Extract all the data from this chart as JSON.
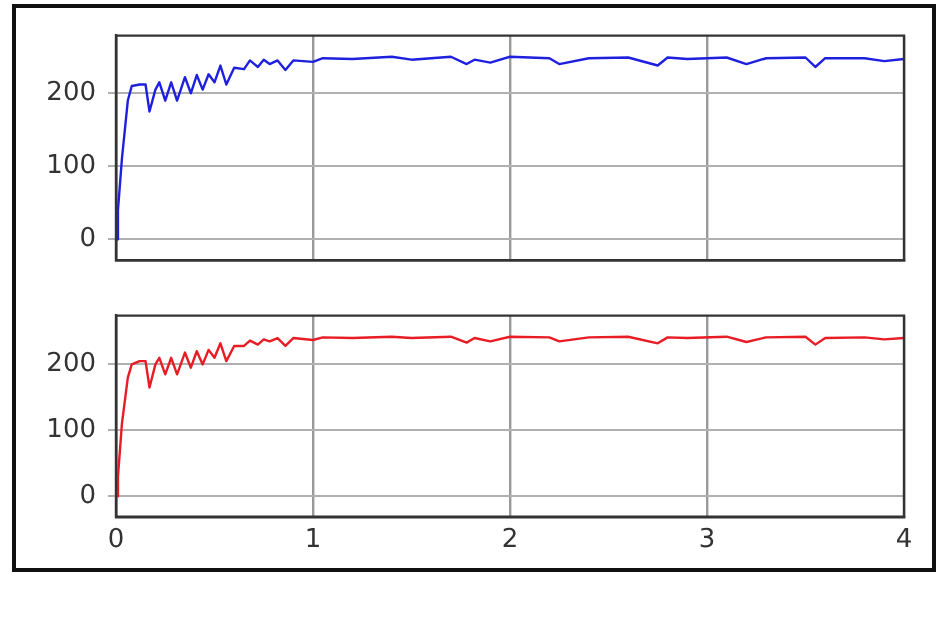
{
  "chart_data": [
    {
      "type": "line",
      "x": [
        0,
        0.01,
        0.03,
        0.06,
        0.08,
        0.12,
        0.15,
        0.17,
        0.2,
        0.22,
        0.25,
        0.28,
        0.31,
        0.35,
        0.38,
        0.41,
        0.44,
        0.47,
        0.5,
        0.53,
        0.56,
        0.6,
        0.65,
        0.68,
        0.72,
        0.75,
        0.78,
        0.82,
        0.86,
        0.9,
        1.0,
        1.05,
        1.2,
        1.4,
        1.5,
        1.7,
        1.78,
        1.82,
        1.9,
        2.0,
        2.2,
        2.25,
        2.4,
        2.6,
        2.75,
        2.8,
        2.9,
        3.1,
        3.2,
        3.3,
        3.5,
        3.55,
        3.6,
        3.8,
        3.9,
        4.0
      ],
      "series": [
        {
          "color": "#1f1fdf",
          "values": [
            0,
            40,
            110,
            190,
            210,
            212,
            212,
            175,
            205,
            215,
            190,
            215,
            190,
            222,
            200,
            225,
            205,
            226,
            215,
            238,
            212,
            235,
            233,
            245,
            236,
            246,
            240,
            245,
            232,
            245,
            243,
            248,
            247,
            250,
            246,
            250,
            240,
            246,
            242,
            250,
            248,
            240,
            248,
            249,
            238,
            249,
            247,
            249,
            240,
            248,
            249,
            236,
            248,
            248,
            244,
            247
          ]
        }
      ],
      "xlim": [
        0,
        4
      ],
      "xticks": [
        0,
        1,
        2,
        3,
        4
      ],
      "ylim": [
        -29,
        279
      ],
      "yticks": [
        0,
        100,
        200
      ],
      "grid": true,
      "tick_labels": "y"
    },
    {
      "type": "line",
      "x": [
        0,
        0.01,
        0.03,
        0.06,
        0.08,
        0.12,
        0.15,
        0.17,
        0.2,
        0.22,
        0.25,
        0.28,
        0.31,
        0.35,
        0.38,
        0.41,
        0.44,
        0.47,
        0.5,
        0.53,
        0.56,
        0.6,
        0.65,
        0.68,
        0.72,
        0.75,
        0.78,
        0.82,
        0.86,
        0.9,
        1.0,
        1.05,
        1.2,
        1.4,
        1.5,
        1.7,
        1.78,
        1.82,
        1.9,
        2.0,
        2.2,
        2.25,
        2.4,
        2.6,
        2.75,
        2.8,
        2.9,
        3.1,
        3.2,
        3.3,
        3.5,
        3.55,
        3.6,
        3.8,
        3.9,
        4.0
      ],
      "series": [
        {
          "color": "#e81c24",
          "values": [
            0,
            30,
            110,
            180,
            200,
            205,
            205,
            165,
            200,
            210,
            185,
            210,
            185,
            218,
            195,
            220,
            200,
            222,
            210,
            232,
            205,
            228,
            228,
            236,
            230,
            238,
            235,
            240,
            228,
            240,
            237,
            241,
            240,
            242,
            240,
            242,
            233,
            240,
            235,
            242,
            241,
            235,
            241,
            242,
            232,
            241,
            240,
            242,
            234,
            241,
            242,
            230,
            240,
            241,
            238,
            240
          ]
        }
      ],
      "xlim": [
        0,
        4
      ],
      "xticks": [
        0,
        1,
        2,
        3,
        4
      ],
      "ylim": [
        -31,
        274
      ],
      "yticks": [
        0,
        100,
        200
      ],
      "grid": true
    }
  ]
}
